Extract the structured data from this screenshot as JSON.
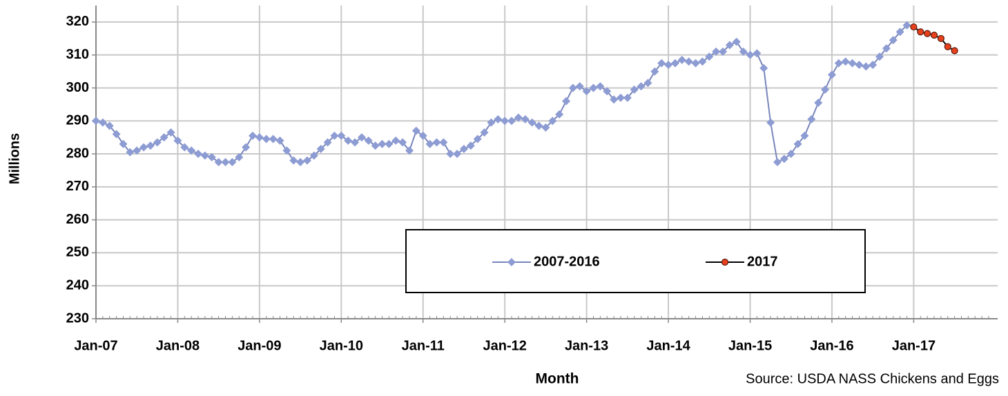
{
  "chart_data": {
    "type": "line",
    "y_label": "Millions",
    "x_label": "Month",
    "source": "Source: USDA NASS Chickens and Eggs",
    "categories": [
      "Jan-07",
      null,
      null,
      null,
      null,
      null,
      null,
      null,
      null,
      null,
      null,
      null,
      "Jan-08",
      null,
      null,
      null,
      null,
      null,
      null,
      null,
      null,
      null,
      null,
      null,
      "Jan-09",
      null,
      null,
      null,
      null,
      null,
      null,
      null,
      null,
      null,
      null,
      null,
      "Jan-10",
      null,
      null,
      null,
      null,
      null,
      null,
      null,
      null,
      null,
      null,
      null,
      "Jan-11",
      null,
      null,
      null,
      null,
      null,
      null,
      null,
      null,
      null,
      null,
      null,
      "Jan-12",
      null,
      null,
      null,
      null,
      null,
      null,
      null,
      null,
      null,
      null,
      null,
      "Jan-13",
      null,
      null,
      null,
      null,
      null,
      null,
      null,
      null,
      null,
      null,
      null,
      "Jan-14",
      null,
      null,
      null,
      null,
      null,
      null,
      null,
      null,
      null,
      null,
      null,
      "Jan-15",
      null,
      null,
      null,
      null,
      null,
      null,
      null,
      null,
      null,
      null,
      null,
      "Jan-16",
      null,
      null,
      null,
      null,
      null,
      null,
      null,
      null,
      null,
      null,
      null,
      "Jan-17",
      null,
      null,
      null,
      null,
      null,
      null,
      null,
      null,
      null,
      null,
      null
    ],
    "series": [
      {
        "name": "2007-2016",
        "color": "#7885bb",
        "marker": "diamond",
        "marker_color": "#8d9cd3",
        "values": [
          290,
          289.5,
          288.5,
          286,
          283,
          280.5,
          281,
          282,
          282.5,
          283.5,
          285,
          286.5,
          284,
          282,
          281,
          280,
          279.5,
          279,
          277.5,
          277.5,
          277.5,
          279,
          282,
          285.5,
          285,
          284.5,
          284.5,
          284,
          281,
          278,
          277.5,
          278,
          279.5,
          281.5,
          283.5,
          285.5,
          285.5,
          284,
          283.5,
          285,
          284,
          282.5,
          283,
          283,
          284,
          283.5,
          281,
          287,
          285.5,
          283,
          283.5,
          283.5,
          280,
          280,
          281.5,
          282.5,
          284.5,
          286.5,
          289.5,
          290.5,
          290,
          290,
          291,
          290.5,
          289.5,
          288.5,
          288,
          290,
          292,
          296,
          300,
          300.5,
          299,
          300,
          300.5,
          299,
          296.5,
          297,
          297,
          299.5,
          300.5,
          301.5,
          305,
          307.5,
          307,
          307.5,
          308.5,
          308,
          307.5,
          308,
          309.5,
          311,
          311,
          313,
          314,
          311,
          310,
          310.5,
          306,
          289.5,
          277.5,
          278.5,
          280,
          283,
          285.5,
          290.5,
          295.5,
          299.5,
          304,
          307.5,
          308,
          307.5,
          307,
          306.5,
          307,
          309.5,
          312,
          314.5,
          317,
          319,
          null,
          null,
          null,
          null,
          null,
          null,
          null,
          null,
          null,
          null,
          null,
          null
        ]
      },
      {
        "name": "2017",
        "color": "#000000",
        "marker": "circle",
        "marker_color": "#e8401c",
        "values": [
          null,
          null,
          null,
          null,
          null,
          null,
          null,
          null,
          null,
          null,
          null,
          null,
          null,
          null,
          null,
          null,
          null,
          null,
          null,
          null,
          null,
          null,
          null,
          null,
          null,
          null,
          null,
          null,
          null,
          null,
          null,
          null,
          null,
          null,
          null,
          null,
          null,
          null,
          null,
          null,
          null,
          null,
          null,
          null,
          null,
          null,
          null,
          null,
          null,
          null,
          null,
          null,
          null,
          null,
          null,
          null,
          null,
          null,
          null,
          null,
          null,
          null,
          null,
          null,
          null,
          null,
          null,
          null,
          null,
          null,
          null,
          null,
          null,
          null,
          null,
          null,
          null,
          null,
          null,
          null,
          null,
          null,
          null,
          null,
          null,
          null,
          null,
          null,
          null,
          null,
          null,
          null,
          null,
          null,
          null,
          null,
          null,
          null,
          null,
          null,
          null,
          null,
          null,
          null,
          null,
          null,
          null,
          null,
          null,
          null,
          null,
          null,
          null,
          null,
          null,
          null,
          null,
          null,
          null,
          null,
          318.5,
          317,
          316.5,
          316,
          315,
          312.5,
          311.3,
          null,
          null,
          null,
          null,
          null
        ]
      }
    ],
    "ylim": [
      230,
      325
    ],
    "yticks": [
      230,
      240,
      250,
      260,
      270,
      280,
      290,
      300,
      310,
      320
    ],
    "grid": true
  }
}
